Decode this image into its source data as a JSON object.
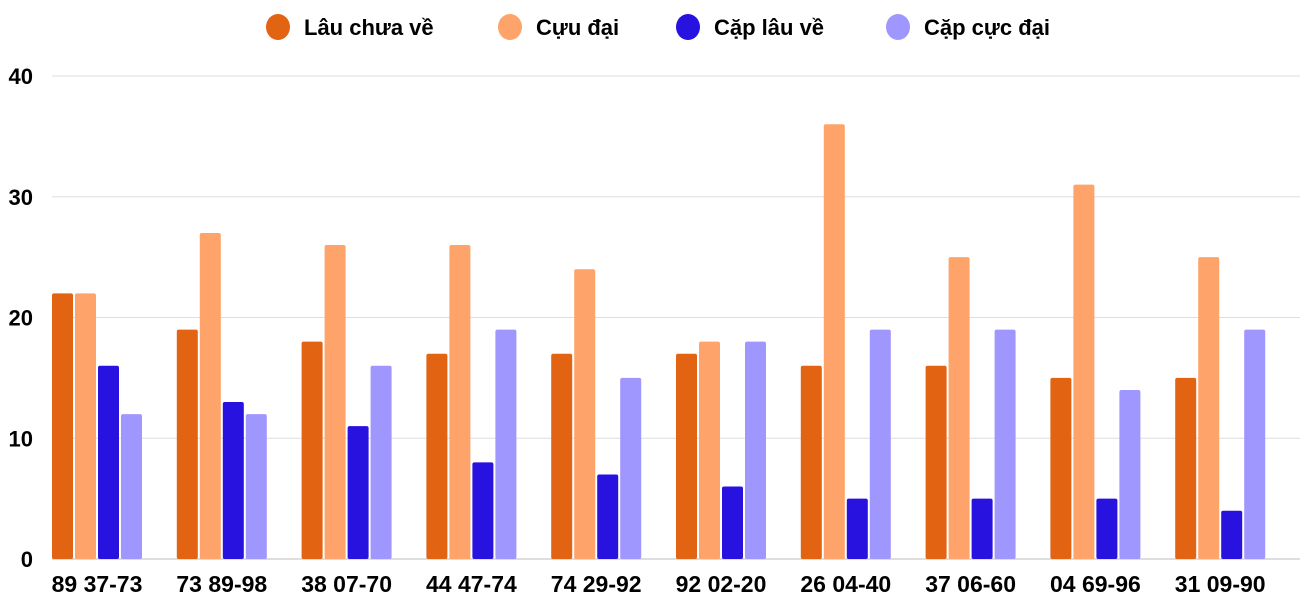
{
  "chart_data": {
    "type": "bar",
    "title": "",
    "xlabel": "",
    "ylabel": "",
    "ylim": [
      0,
      40
    ],
    "yticks": [
      0,
      10,
      20,
      30,
      40
    ],
    "grid": true,
    "legend_position": "top-center",
    "categories": [
      "89 37-73",
      "73 89-98",
      "38 07-70",
      "44 47-74",
      "74 29-92",
      "92 02-20",
      "26 04-40",
      "37 06-60",
      "04 69-96",
      "31 09-90"
    ],
    "series": [
      {
        "name": "Lâu chưa về",
        "color": "#e26311",
        "values": [
          22,
          19,
          18,
          17,
          17,
          17,
          16,
          16,
          15,
          15
        ]
      },
      {
        "name": "Cựu đại",
        "color": "#fea36a",
        "values": [
          22,
          27,
          26,
          26,
          24,
          18,
          36,
          25,
          31,
          25
        ]
      },
      {
        "name": "Cặp lâu về",
        "color": "#2712e0",
        "values": [
          16,
          13,
          11,
          8,
          7,
          6,
          5,
          5,
          5,
          4
        ]
      },
      {
        "name": "Cặp cực đại",
        "color": "#a097fe",
        "values": [
          12,
          12,
          16,
          19,
          15,
          18,
          19,
          19,
          14,
          19
        ]
      }
    ]
  }
}
